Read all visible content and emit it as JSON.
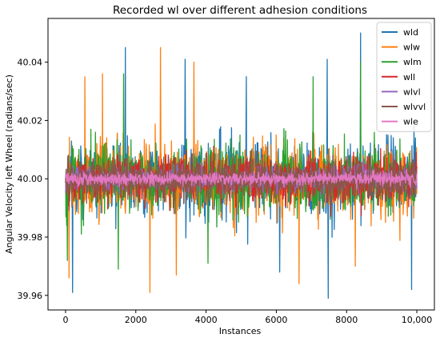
{
  "chart_data": {
    "type": "line",
    "title": "Recorded wl over different adhesion conditions",
    "xlabel": "Instances",
    "ylabel": "Angular Velocity left Wheel (radians/sec)",
    "xlim": [
      -500,
      10500
    ],
    "ylim": [
      39.955,
      40.055
    ],
    "xticks": [
      0,
      2000,
      4000,
      6000,
      8000,
      10000
    ],
    "xtick_labels": [
      "0",
      "2000",
      "4000",
      "6000",
      "8000",
      "10,000"
    ],
    "yticks": [
      39.96,
      39.98,
      40.0,
      40.02,
      40.04
    ],
    "ytick_labels": [
      "39.96",
      "39.98",
      "40.00",
      "40.02",
      "40.04"
    ],
    "grid": false,
    "legend_position": "top-right",
    "center": 40.0,
    "series": [
      {
        "name": "wld",
        "color": "#1f77b4",
        "range": [
          39.959,
          40.05
        ],
        "typical_spread": 0.011,
        "peaks": [
          {
            "x": 1700,
            "y": 40.045
          },
          {
            "x": 3400,
            "y": 40.041
          },
          {
            "x": 5150,
            "y": 40.035
          },
          {
            "x": 7450,
            "y": 40.041
          },
          {
            "x": 8400,
            "y": 40.05
          },
          {
            "x": 200,
            "y": 39.961
          },
          {
            "x": 7480,
            "y": 39.959
          },
          {
            "x": 9850,
            "y": 39.962
          },
          {
            "x": 6100,
            "y": 39.968
          }
        ]
      },
      {
        "name": "wlw",
        "color": "#ff7f0e",
        "range": [
          39.961,
          40.045
        ],
        "typical_spread": 0.011,
        "peaks": [
          {
            "x": 2700,
            "y": 40.045
          },
          {
            "x": 3650,
            "y": 40.04
          },
          {
            "x": 1050,
            "y": 40.036
          },
          {
            "x": 550,
            "y": 40.035
          },
          {
            "x": 2400,
            "y": 39.961
          },
          {
            "x": 3150,
            "y": 39.967
          },
          {
            "x": 100,
            "y": 39.966
          },
          {
            "x": 6650,
            "y": 39.964
          },
          {
            "x": 8250,
            "y": 39.97
          }
        ]
      },
      {
        "name": "wlm",
        "color": "#2ca02c",
        "range": [
          39.969,
          40.04
        ],
        "typical_spread": 0.01,
        "peaks": [
          {
            "x": 8400,
            "y": 40.04
          },
          {
            "x": 1650,
            "y": 40.036
          },
          {
            "x": 7050,
            "y": 40.035
          },
          {
            "x": 50,
            "y": 39.972
          },
          {
            "x": 1500,
            "y": 39.969
          },
          {
            "x": 4050,
            "y": 39.971
          }
        ]
      },
      {
        "name": "wll",
        "color": "#d62728",
        "range": [
          39.984,
          40.017
        ],
        "typical_spread": 0.007,
        "peaks": []
      },
      {
        "name": "wlvl",
        "color": "#9467bd",
        "range": [
          39.992,
          40.008
        ],
        "typical_spread": 0.004,
        "peaks": []
      },
      {
        "name": "wlvvl",
        "color": "#8c564b",
        "range": [
          39.984,
          40.017
        ],
        "typical_spread": 0.006,
        "peaks": []
      },
      {
        "name": "wle",
        "color": "#e377c2",
        "range": [
          39.996,
          40.004
        ],
        "typical_spread": 0.002,
        "peaks": []
      }
    ]
  }
}
